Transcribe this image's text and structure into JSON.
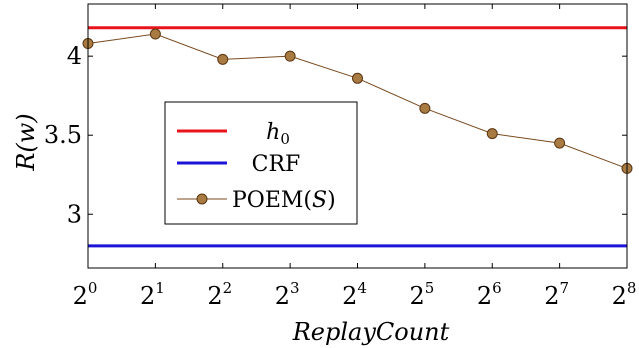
{
  "chart_data": {
    "type": "line",
    "xlabel": "ReplayCount",
    "ylabel": "R(w)",
    "x": [
      0,
      1,
      2,
      3,
      4,
      5,
      6,
      7,
      8
    ],
    "x_tick_labels": [
      {
        "base": "2",
        "exp": "0"
      },
      {
        "base": "2",
        "exp": "1"
      },
      {
        "base": "2",
        "exp": "2"
      },
      {
        "base": "2",
        "exp": "3"
      },
      {
        "base": "2",
        "exp": "4"
      },
      {
        "base": "2",
        "exp": "5"
      },
      {
        "base": "2",
        "exp": "6"
      },
      {
        "base": "2",
        "exp": "7"
      },
      {
        "base": "2",
        "exp": "8"
      }
    ],
    "y_ticks": [
      3,
      3.5,
      4
    ],
    "y_tick_labels": [
      "3",
      "3.5",
      "4"
    ],
    "xlim": [
      0,
      8
    ],
    "ylim": [
      2.66,
      4.33
    ],
    "xscale": "log2",
    "grid": false,
    "legend_position": "center-left",
    "series": [
      {
        "name": "h0",
        "name_base": "h",
        "name_sub": "0",
        "color": "#e8141c",
        "kind": "horizontal",
        "value": 4.18
      },
      {
        "name": "CRF",
        "color": "#1b14d8",
        "kind": "horizontal",
        "value": 2.8
      },
      {
        "name": "POEM(S)",
        "name_prefix": "POEM(",
        "name_script": "S",
        "name_suffix": ")",
        "color": "#7a4a1e",
        "marker_fill": "#a87b43",
        "kind": "line",
        "values": [
          4.08,
          4.14,
          3.98,
          4.0,
          3.86,
          3.67,
          3.51,
          3.45,
          3.29
        ]
      }
    ]
  }
}
